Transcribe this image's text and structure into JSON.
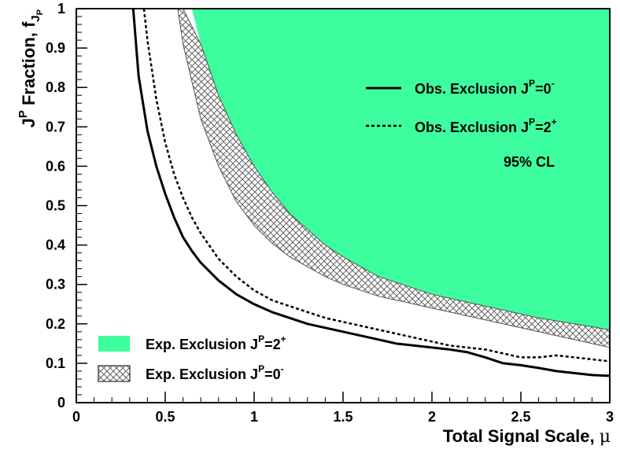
{
  "chart_data": {
    "type": "line",
    "title": "",
    "xlabel": "Total Signal Scale, μ",
    "ylabel": "J^P Fraction, f_Jp",
    "xlim": [
      0,
      3
    ],
    "ylim": [
      0,
      1
    ],
    "x_ticks": [
      "0",
      "0.5",
      "1",
      "1.5",
      "2",
      "2.5",
      "3"
    ],
    "y_ticks": [
      "0",
      "0.1",
      "0.2",
      "0.3",
      "0.4",
      "0.5",
      "0.6",
      "0.7",
      "0.8",
      "0.9",
      "1"
    ],
    "confidence_label": "95% CL",
    "colors": {
      "exp_2plus_fill": "#3dfe9e",
      "line": "#000000",
      "hatch": "#666666"
    },
    "series": [
      {
        "name": "Obs. Exclusion J^P=0^-",
        "style": "solid",
        "x": [
          0.32,
          0.35,
          0.4,
          0.45,
          0.5,
          0.55,
          0.6,
          0.65,
          0.7,
          0.8,
          0.9,
          1.0,
          1.1,
          1.2,
          1.3,
          1.4,
          1.5,
          1.6,
          1.7,
          1.8,
          1.9,
          2.0,
          2.1,
          2.2,
          2.3,
          2.4,
          2.5,
          2.6,
          2.7,
          2.8,
          2.9,
          3.0
        ],
        "y": [
          1.0,
          0.83,
          0.69,
          0.6,
          0.53,
          0.47,
          0.42,
          0.385,
          0.355,
          0.31,
          0.275,
          0.25,
          0.23,
          0.215,
          0.2,
          0.19,
          0.18,
          0.17,
          0.16,
          0.15,
          0.145,
          0.14,
          0.135,
          0.128,
          0.115,
          0.1,
          0.095,
          0.088,
          0.08,
          0.075,
          0.07,
          0.068
        ]
      },
      {
        "name": "Obs. Exclusion J^P=2^+",
        "style": "dashed",
        "x": [
          0.38,
          0.4,
          0.45,
          0.5,
          0.55,
          0.6,
          0.65,
          0.7,
          0.8,
          0.9,
          1.0,
          1.1,
          1.2,
          1.3,
          1.4,
          1.5,
          1.6,
          1.7,
          1.8,
          1.9,
          2.0,
          2.1,
          2.2,
          2.3,
          2.4,
          2.5,
          2.6,
          2.7,
          2.8,
          2.9,
          3.0
        ],
        "y": [
          1.0,
          0.92,
          0.77,
          0.66,
          0.58,
          0.52,
          0.47,
          0.43,
          0.365,
          0.32,
          0.285,
          0.26,
          0.245,
          0.23,
          0.215,
          0.205,
          0.195,
          0.185,
          0.175,
          0.165,
          0.155,
          0.145,
          0.14,
          0.135,
          0.125,
          0.115,
          0.115,
          0.12,
          0.115,
          0.11,
          0.105
        ]
      },
      {
        "name": "Exp. Exclusion J^P=2^+",
        "style": "filled",
        "x": [
          0.65,
          0.7,
          0.8,
          0.9,
          1.0,
          1.1,
          1.2,
          1.3,
          1.4,
          1.5,
          1.6,
          1.7,
          1.8,
          1.9,
          2.0,
          2.2,
          2.4,
          2.6,
          2.8,
          3.0
        ],
        "y": [
          1.0,
          0.91,
          0.78,
          0.68,
          0.6,
          0.535,
          0.48,
          0.44,
          0.4,
          0.37,
          0.345,
          0.32,
          0.305,
          0.29,
          0.275,
          0.255,
          0.235,
          0.215,
          0.2,
          0.185
        ]
      },
      {
        "name": "Exp. Exclusion J^P=0^-",
        "style": "hatched-band",
        "x": [
          0.57,
          0.6,
          0.7,
          0.8,
          0.9,
          1.0,
          1.1,
          1.2,
          1.3,
          1.4,
          1.5,
          1.6,
          1.7,
          1.8,
          2.0,
          2.2,
          2.4,
          2.6,
          2.8,
          3.0
        ],
        "y_lower": [
          1.0,
          0.91,
          0.72,
          0.6,
          0.51,
          0.45,
          0.405,
          0.37,
          0.345,
          0.32,
          0.3,
          0.285,
          0.27,
          0.26,
          0.24,
          0.22,
          0.2,
          0.18,
          0.16,
          0.14
        ],
        "y_upper": [
          1.0,
          1.0,
          0.91,
          0.78,
          0.68,
          0.6,
          0.535,
          0.48,
          0.44,
          0.4,
          0.37,
          0.345,
          0.32,
          0.305,
          0.275,
          0.255,
          0.235,
          0.215,
          0.2,
          0.185
        ]
      }
    ],
    "legend_top": [
      {
        "key": "obs0",
        "main": "Obs. Exclusion J",
        "sup": "P",
        "mid": "=0",
        "sup2": "-"
      },
      {
        "key": "obs2",
        "main": "Obs. Exclusion J",
        "sup": "P",
        "mid": "=2",
        "sup2": "+"
      }
    ],
    "legend_bottom": [
      {
        "key": "exp2",
        "main": "Exp. Exclusion J",
        "sup": "P",
        "mid": "=2",
        "sup2": "+"
      },
      {
        "key": "exp0",
        "main": "Exp. Exclusion J",
        "sup": "P",
        "mid": "=0",
        "sup2": "-"
      }
    ],
    "xlabel_parts": {
      "text": "Total Signal Scale, ",
      "symbol": "μ"
    },
    "ylabel_parts": {
      "j": "J",
      "sup": "P",
      "text": " Fraction, f",
      "sub": "J",
      "subsub": "P"
    }
  }
}
